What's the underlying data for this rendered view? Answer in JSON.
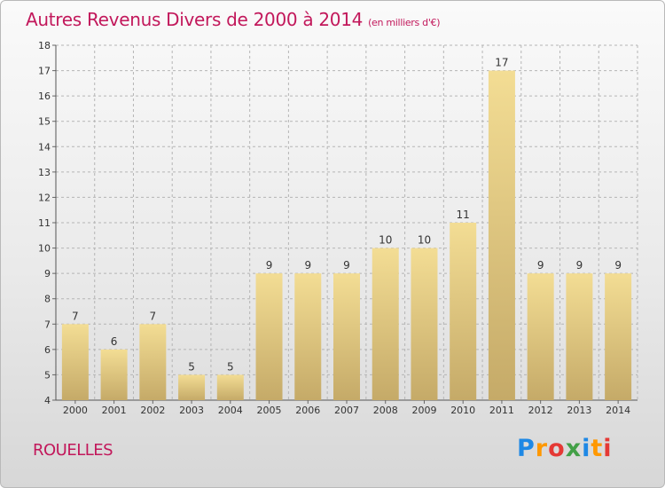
{
  "header": {
    "title": "Autres Revenus Divers de 2000 à 2014",
    "unit": "(en milliers d'€)"
  },
  "footer": {
    "commune": "ROUELLES",
    "logo": "Proxiti",
    "logo_colors": [
      "#1e88e5",
      "#ff9800",
      "#e53935",
      "#43a047",
      "#1e88e5",
      "#ff9800",
      "#e53935"
    ]
  },
  "chart_data": {
    "type": "bar",
    "title": "Autres Revenus Divers de 2000 à 2014",
    "subtitle": "(en milliers d'€)",
    "xlabel": "",
    "ylabel": "",
    "categories": [
      "2000",
      "2001",
      "2002",
      "2003",
      "2004",
      "2005",
      "2006",
      "2007",
      "2008",
      "2009",
      "2010",
      "2011",
      "2012",
      "2013",
      "2014"
    ],
    "values": [
      7,
      6,
      7,
      5,
      5,
      9,
      9,
      9,
      10,
      10,
      11,
      17,
      9,
      9,
      9
    ],
    "ylim": [
      4,
      18
    ],
    "yticks": [
      4,
      5,
      6,
      7,
      8,
      9,
      10,
      11,
      12,
      13,
      14,
      15,
      16,
      17,
      18
    ],
    "grid": true,
    "data_labels": true,
    "bar_color_light": "#f3dd94",
    "bar_color_dark": "#c5aa68",
    "grid_color": "#b5b5b5",
    "axis_text_color": "#333333"
  }
}
